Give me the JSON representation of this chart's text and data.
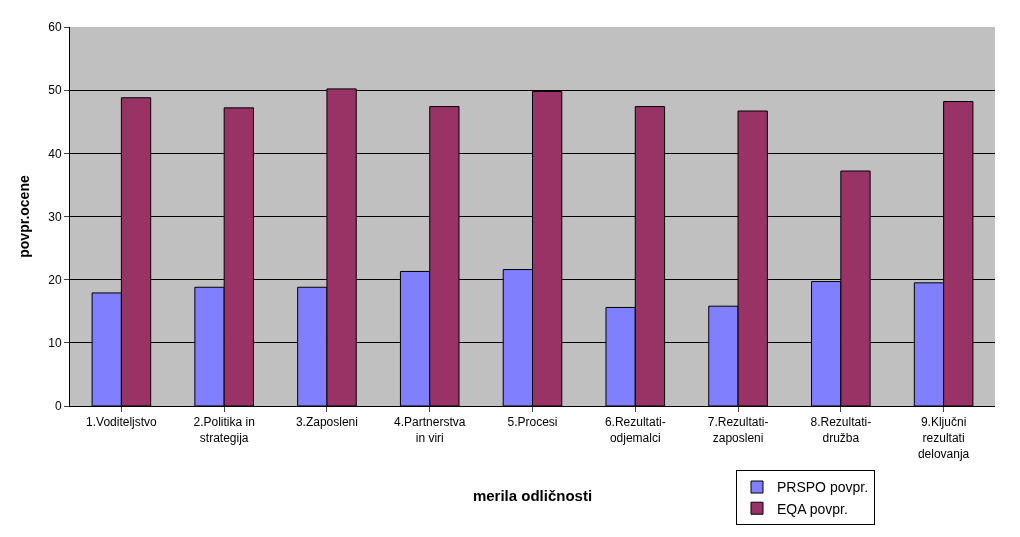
{
  "chart_data": {
    "type": "bar",
    "xlabel": "merila odličnosti",
    "ylabel": "povpr.ocene",
    "categories": [
      "1.Voditeljstvo",
      "2.Politika in strategija",
      "3.Zaposleni",
      "4.Partnerstva in viri",
      "5.Procesi",
      "6.Rezultati-odjemalci",
      "7.Rezultati-zaposleni",
      "8.Rezultati-družba",
      "9.Ključni rezultati delovanja"
    ],
    "series": [
      {
        "name": "PRSPO povpr.",
        "color": "#8080ff",
        "values": [
          17.9,
          18.8,
          18.8,
          21.3,
          21.6,
          15.6,
          15.8,
          19.7,
          19.5
        ]
      },
      {
        "name": "EQA povpr.",
        "color": "#993366",
        "values": [
          48.8,
          47.2,
          50.2,
          47.4,
          49.8,
          47.4,
          46.7,
          37.2,
          48.2
        ]
      }
    ],
    "ylim": [
      0,
      60
    ],
    "yticks": [
      0,
      10,
      20,
      30,
      40,
      50,
      60
    ],
    "grid": "y",
    "legend": "bottom right"
  }
}
